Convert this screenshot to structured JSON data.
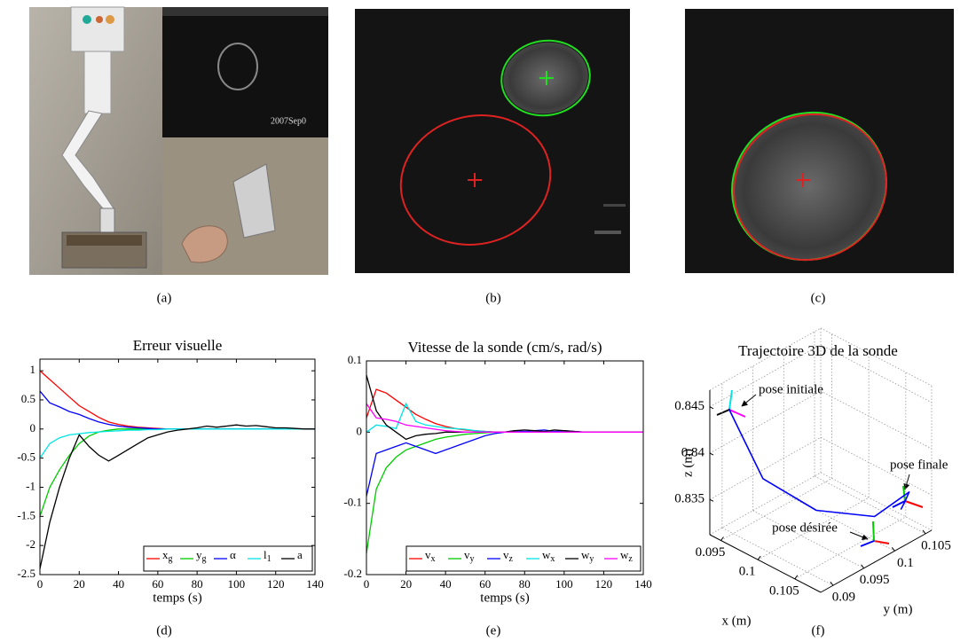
{
  "captions": [
    "(a)",
    "(b)",
    "(c)",
    "(d)",
    "(e)",
    "(f)"
  ],
  "image_text": "2007Sep0",
  "chart_data": [
    {
      "type": "line",
      "title": "Erreur visuelle",
      "xlabel": "temps (s)",
      "x": [
        0,
        5,
        10,
        15,
        20,
        25,
        30,
        35,
        40,
        45,
        50,
        55,
        60,
        65,
        70,
        75,
        80,
        85,
        90,
        95,
        100,
        105,
        110,
        115,
        120,
        125,
        130,
        135,
        140
      ],
      "xlim": [
        0,
        140
      ],
      "xticks": [
        0,
        20,
        40,
        60,
        80,
        100,
        120,
        140
      ],
      "ylim": [
        -2.5,
        1.2
      ],
      "yticks": [
        -2.5,
        -2,
        -1.5,
        -1,
        -0.5,
        0,
        0.5,
        1
      ],
      "legend": "lower right",
      "series": [
        {
          "name": "xg",
          "color": "#ff0000",
          "values": [
            1.0,
            0.85,
            0.7,
            0.55,
            0.4,
            0.3,
            0.2,
            0.12,
            0.08,
            0.05,
            0.03,
            0.02,
            0.01,
            0,
            0,
            0,
            0,
            0,
            0,
            0,
            0,
            0,
            0,
            0,
            0,
            0,
            0,
            0,
            0
          ]
        },
        {
          "name": "yg",
          "color": "#00cc00",
          "values": [
            -1.5,
            -1.0,
            -0.7,
            -0.45,
            -0.25,
            -0.12,
            -0.05,
            -0.02,
            0,
            0,
            0,
            0,
            0,
            0,
            0,
            0,
            0,
            0,
            0,
            0,
            0,
            0,
            0,
            0,
            0,
            0,
            0,
            0,
            0
          ]
        },
        {
          "name": "α",
          "color": "#0000ff",
          "values": [
            0.65,
            0.45,
            0.38,
            0.3,
            0.25,
            0.18,
            0.12,
            0.08,
            0.05,
            0.03,
            0.02,
            0.01,
            0,
            0,
            0,
            0,
            0,
            0,
            0,
            0,
            0,
            0,
            0,
            0,
            0,
            0,
            0,
            0,
            0
          ]
        },
        {
          "name": "l1",
          "color": "#00e5e5",
          "values": [
            -0.5,
            -0.25,
            -0.15,
            -0.1,
            -0.08,
            -0.06,
            -0.05,
            -0.04,
            -0.03,
            -0.02,
            -0.02,
            -0.01,
            -0.01,
            0,
            0,
            0,
            0,
            0,
            0,
            0,
            0,
            0,
            0,
            0,
            0,
            0,
            0,
            0,
            0
          ]
        },
        {
          "name": "a",
          "color": "#000000",
          "values": [
            -2.4,
            -1.6,
            -1.0,
            -0.5,
            -0.1,
            -0.3,
            -0.45,
            -0.55,
            -0.45,
            -0.35,
            -0.25,
            -0.15,
            -0.1,
            -0.05,
            -0.02,
            0,
            0.02,
            0.05,
            0.03,
            0.05,
            0.07,
            0.05,
            0.06,
            0.04,
            0.02,
            0.02,
            0.01,
            0,
            0
          ]
        }
      ]
    },
    {
      "type": "line",
      "title": "Vitesse de la sonde (cm/s, rad/s)",
      "xlabel": "temps (s)",
      "x": [
        0,
        5,
        10,
        15,
        20,
        25,
        30,
        35,
        40,
        45,
        50,
        55,
        60,
        65,
        70,
        75,
        80,
        85,
        90,
        95,
        100,
        105,
        110,
        115,
        120,
        125,
        130,
        135,
        140
      ],
      "xlim": [
        0,
        140
      ],
      "xticks": [
        0,
        20,
        40,
        60,
        80,
        100,
        120,
        140
      ],
      "ylim": [
        -0.2,
        0.1
      ],
      "yticks": [
        -0.2,
        -0.1,
        0,
        0.1
      ],
      "legend": "lower right",
      "series": [
        {
          "name": "vx",
          "color": "#ff0000",
          "values": [
            0.02,
            0.06,
            0.055,
            0.045,
            0.035,
            0.025,
            0.018,
            0.012,
            0.008,
            0.005,
            0.003,
            0.002,
            0.001,
            0,
            0,
            0,
            0,
            0,
            0,
            0,
            0,
            0,
            0,
            0,
            0,
            0,
            0,
            0,
            0
          ]
        },
        {
          "name": "vy",
          "color": "#00cc00",
          "values": [
            -0.17,
            -0.08,
            -0.05,
            -0.035,
            -0.025,
            -0.02,
            -0.015,
            -0.01,
            -0.007,
            -0.005,
            -0.003,
            -0.002,
            -0.001,
            0,
            0,
            0,
            0,
            0,
            0,
            0,
            0,
            0,
            0,
            0,
            0,
            0,
            0,
            0,
            0
          ]
        },
        {
          "name": "vz",
          "color": "#0000ff",
          "values": [
            -0.09,
            -0.03,
            -0.025,
            -0.02,
            -0.015,
            -0.02,
            -0.025,
            -0.03,
            -0.025,
            -0.02,
            -0.015,
            -0.01,
            -0.005,
            -0.002,
            0,
            0.002,
            0.001,
            0.002,
            0.003,
            0.001,
            0.002,
            0.001,
            0,
            0,
            0,
            0,
            0,
            0,
            0
          ]
        },
        {
          "name": "wx",
          "color": "#00e5e5",
          "values": [
            0,
            0.01,
            0.008,
            0.005,
            0.04,
            0.015,
            0.01,
            0.008,
            0.006,
            0.005,
            0.004,
            0.002,
            0.001,
            0,
            0,
            0,
            0,
            0,
            0,
            0,
            0,
            0,
            0,
            0,
            0,
            0,
            0,
            0,
            0
          ]
        },
        {
          "name": "wy",
          "color": "#000000",
          "values": [
            0.08,
            0.03,
            0.01,
            0,
            -0.01,
            -0.005,
            -0.003,
            -0.002,
            0,
            0,
            0,
            0,
            0,
            0,
            0,
            0.002,
            0.003,
            0.002,
            0.001,
            0.003,
            0.002,
            0.001,
            0,
            0,
            0,
            0,
            0,
            0,
            0
          ]
        },
        {
          "name": "wz",
          "color": "#ff00ff",
          "values": [
            0.04,
            0.02,
            0.018,
            0.015,
            0.01,
            0.008,
            0.006,
            0.004,
            0.002,
            0.001,
            0,
            0,
            0,
            0,
            0,
            0,
            0,
            0,
            0,
            0,
            0,
            0,
            0,
            0,
            0,
            0,
            0,
            0,
            0
          ]
        }
      ]
    },
    {
      "type": "line3d",
      "title": "Trajectoire 3D de la sonde",
      "xlabel": "x (m)",
      "ylabel": "y (m)",
      "zlabel": "z (m)",
      "xlim": [
        0.0935,
        0.1085
      ],
      "ylim": [
        0.088,
        0.106
      ],
      "zlim": [
        0.8312,
        0.8468
      ],
      "xticks": [
        0.095,
        0.1,
        0.105
      ],
      "yticks": [
        0.09,
        0.095,
        0.1,
        0.105
      ],
      "zticks": [
        0.835,
        0.84,
        0.845
      ],
      "grid": true,
      "annotations": [
        "pose initiale",
        "pose finale",
        "pose désirée"
      ],
      "series": [
        {
          "color": "#0000ff",
          "x": [
            0.0945,
            0.0967,
            0.0981,
            0.1029,
            0.1066,
            0.1077,
            0.108,
            0.1085
          ],
          "y": [
            0.0899,
            0.0892,
            0.0911,
            0.094,
            0.099,
            0.1033,
            0.1023,
            0.101
          ],
          "z": [
            0.8445,
            0.843,
            0.838,
            0.8355,
            0.8345,
            0.836,
            0.8355,
            0.8353
          ]
        }
      ]
    }
  ]
}
